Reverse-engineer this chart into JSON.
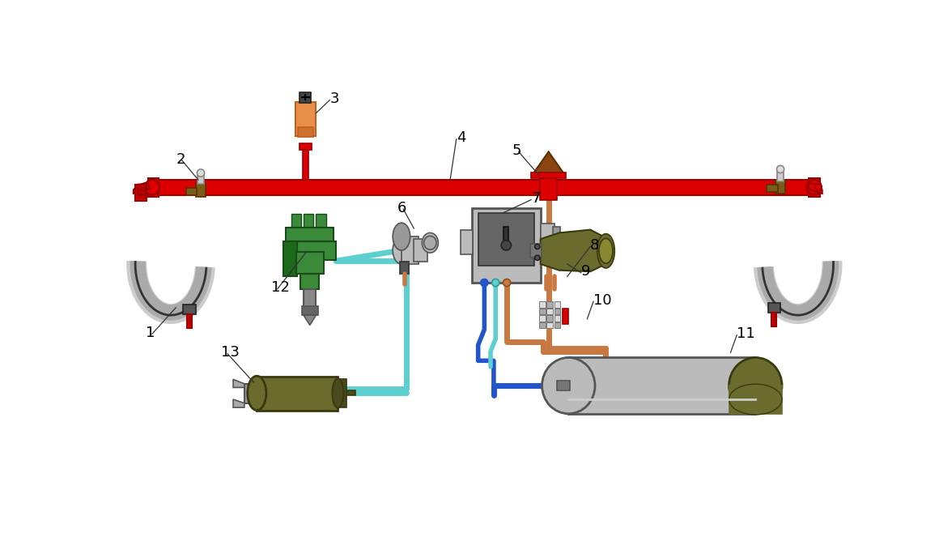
{
  "bg_color": "#ffffff",
  "pipe_red": "#dd0000",
  "pipe_red_dark": "#990000",
  "brown": "#8B4513",
  "brown_valve": "#7a5c1a",
  "brown_dark": "#5a3000",
  "orange": "#e8904a",
  "orange_dark": "#c06020",
  "gray_light": "#bbbbbb",
  "gray_mid": "#888888",
  "gray_dark": "#555555",
  "green": "#3a8a3a",
  "green_dark": "#1a4a1a",
  "olive": "#6b6b2e",
  "olive_dark": "#3a3a10",
  "cyan": "#5dcfcf",
  "cyan_dark": "#2a9a9a",
  "blue": "#2255cc",
  "blue_light": "#66aaff",
  "copper": "#c87941",
  "copper_dark": "#8a5020",
  "white": "#ffffff",
  "black": "#111111"
}
